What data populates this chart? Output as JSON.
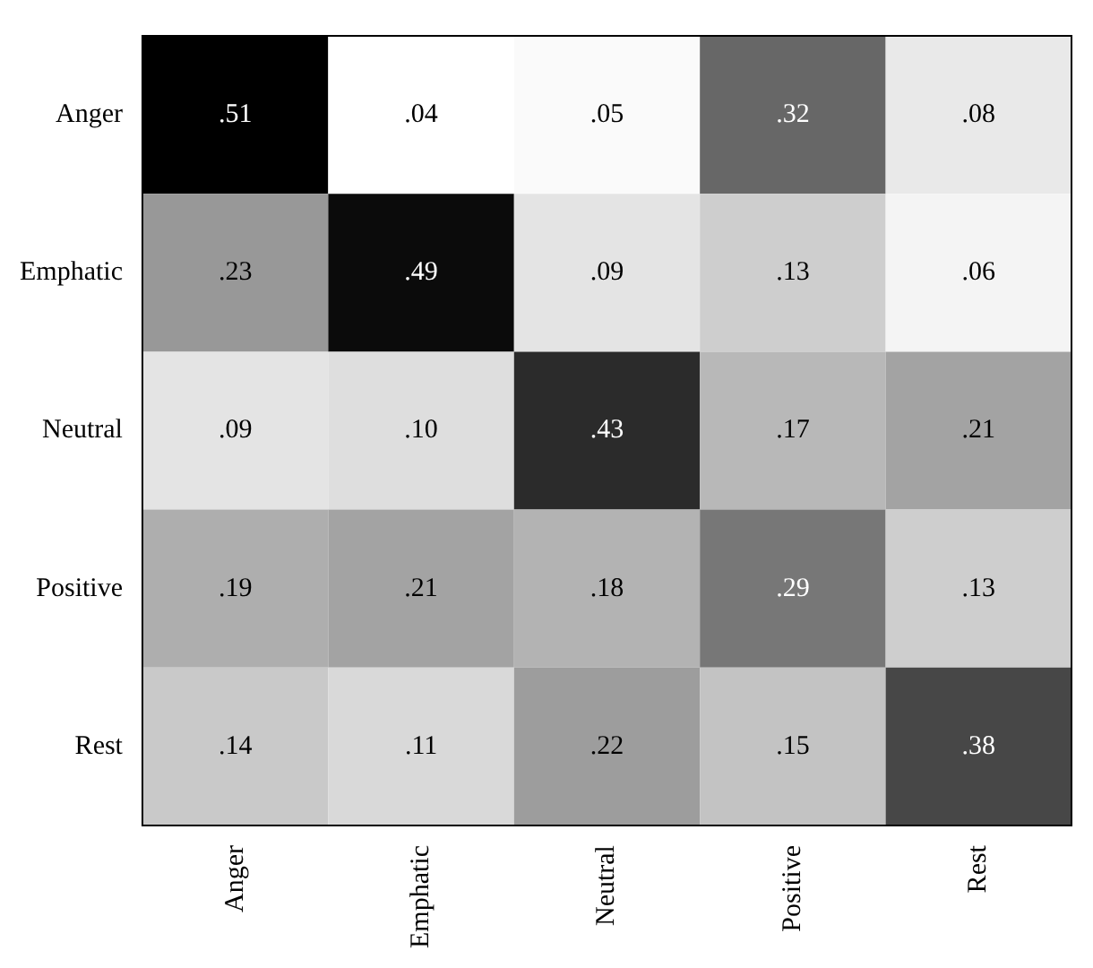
{
  "chart_data": {
    "type": "heatmap",
    "categories": [
      "Anger",
      "Emphatic",
      "Neutral",
      "Positive",
      "Rest"
    ],
    "y_categories": [
      "Anger",
      "Emphatic",
      "Neutral",
      "Positive",
      "Rest"
    ],
    "cells": [
      [
        0.51,
        0.04,
        0.05,
        0.32,
        0.08
      ],
      [
        0.23,
        0.49,
        0.09,
        0.13,
        0.06
      ],
      [
        0.09,
        0.1,
        0.43,
        0.17,
        0.21
      ],
      [
        0.19,
        0.21,
        0.18,
        0.29,
        0.13
      ],
      [
        0.14,
        0.11,
        0.22,
        0.15,
        0.38
      ]
    ],
    "cell_labels": [
      [
        ".51",
        ".04",
        ".05",
        ".32",
        ".08"
      ],
      [
        ".23",
        ".49",
        ".09",
        ".13",
        ".06"
      ],
      [
        ".09",
        ".10",
        ".43",
        ".17",
        ".21"
      ],
      [
        ".19",
        ".21",
        ".18",
        ".29",
        ".13"
      ],
      [
        ".14",
        ".11",
        ".22",
        ".15",
        ".38"
      ]
    ]
  }
}
